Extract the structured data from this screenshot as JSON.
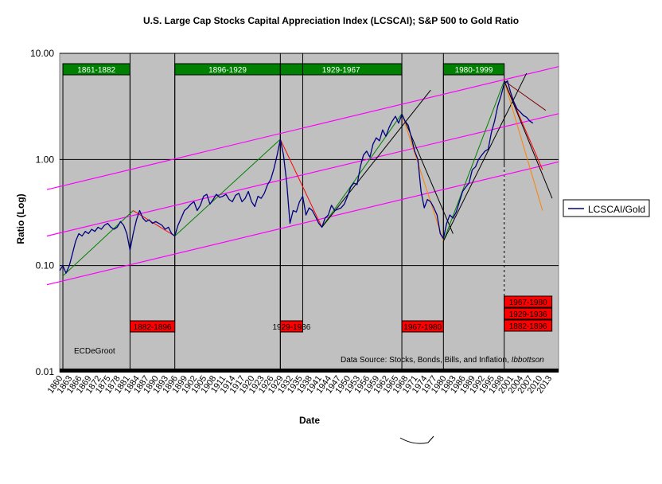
{
  "chart_data": {
    "type": "line",
    "title": "U.S. Large Cap Stocks Capital Appreciation Index (LCSCAI); S&P 500 to Gold Ratio",
    "xlabel": "Date",
    "ylabel": "Ratio (Log)",
    "y_scale": "log",
    "ylim": [
      0.01,
      10
    ],
    "xlim": [
      1860,
      2016
    ],
    "y_ticks": [
      "10.00",
      "1.00",
      "0.10",
      "0.01"
    ],
    "x_ticks": [
      "1860",
      "1863",
      "1866",
      "1869",
      "1872",
      "1875",
      "1878",
      "1881",
      "1884",
      "1887",
      "1890",
      "1893",
      "1896",
      "1899",
      "1902",
      "1905",
      "1908",
      "1911",
      "1914",
      "1917",
      "1920",
      "1923",
      "1926",
      "1929",
      "1932",
      "1935",
      "1938",
      "1941",
      "1944",
      "1947",
      "1950",
      "1953",
      "1956",
      "1959",
      "1962",
      "1965",
      "1968",
      "1971",
      "1974",
      "1977",
      "1980",
      "1983",
      "1986",
      "1989",
      "1992",
      "1995",
      "1998",
      "2001",
      "2004",
      "2007",
      "2010",
      "2013"
    ],
    "plot_background": "#c0c0c0",
    "grid": "horizontal major lines",
    "legend": {
      "position": "right",
      "entries": [
        "LCSCAI/Gold"
      ]
    },
    "series": [
      {
        "name": "LCSCAI/Gold",
        "color": "#000080",
        "points": [
          [
            1860,
            0.09
          ],
          [
            1861,
            0.1
          ],
          [
            1862,
            0.085
          ],
          [
            1863,
            0.1
          ],
          [
            1864,
            0.13
          ],
          [
            1865,
            0.17
          ],
          [
            1866,
            0.2
          ],
          [
            1867,
            0.19
          ],
          [
            1868,
            0.21
          ],
          [
            1869,
            0.2
          ],
          [
            1870,
            0.22
          ],
          [
            1871,
            0.21
          ],
          [
            1872,
            0.23
          ],
          [
            1873,
            0.22
          ],
          [
            1874,
            0.24
          ],
          [
            1875,
            0.25
          ],
          [
            1876,
            0.23
          ],
          [
            1877,
            0.22
          ],
          [
            1878,
            0.23
          ],
          [
            1879,
            0.26
          ],
          [
            1880,
            0.24
          ],
          [
            1881,
            0.2
          ],
          [
            1882,
            0.14
          ],
          [
            1883,
            0.2
          ],
          [
            1884,
            0.27
          ],
          [
            1885,
            0.33
          ],
          [
            1886,
            0.28
          ],
          [
            1887,
            0.26
          ],
          [
            1888,
            0.27
          ],
          [
            1889,
            0.25
          ],
          [
            1890,
            0.26
          ],
          [
            1891,
            0.25
          ],
          [
            1892,
            0.24
          ],
          [
            1893,
            0.22
          ],
          [
            1894,
            0.23
          ],
          [
            1895,
            0.2
          ],
          [
            1896,
            0.19
          ],
          [
            1897,
            0.24
          ],
          [
            1898,
            0.28
          ],
          [
            1899,
            0.33
          ],
          [
            1900,
            0.35
          ],
          [
            1901,
            0.38
          ],
          [
            1902,
            0.4
          ],
          [
            1903,
            0.33
          ],
          [
            1904,
            0.37
          ],
          [
            1905,
            0.45
          ],
          [
            1906,
            0.47
          ],
          [
            1907,
            0.38
          ],
          [
            1908,
            0.42
          ],
          [
            1909,
            0.47
          ],
          [
            1910,
            0.44
          ],
          [
            1911,
            0.45
          ],
          [
            1912,
            0.47
          ],
          [
            1913,
            0.42
          ],
          [
            1914,
            0.4
          ],
          [
            1915,
            0.46
          ],
          [
            1916,
            0.48
          ],
          [
            1917,
            0.4
          ],
          [
            1918,
            0.43
          ],
          [
            1919,
            0.5
          ],
          [
            1920,
            0.4
          ],
          [
            1921,
            0.36
          ],
          [
            1922,
            0.45
          ],
          [
            1923,
            0.43
          ],
          [
            1924,
            0.48
          ],
          [
            1925,
            0.58
          ],
          [
            1926,
            0.65
          ],
          [
            1927,
            0.82
          ],
          [
            1928,
            1.1
          ],
          [
            1929,
            1.55
          ],
          [
            1930,
            1.1
          ],
          [
            1931,
            0.6
          ],
          [
            1932,
            0.25
          ],
          [
            1933,
            0.33
          ],
          [
            1934,
            0.32
          ],
          [
            1935,
            0.4
          ],
          [
            1936,
            0.45
          ],
          [
            1937,
            0.3
          ],
          [
            1938,
            0.35
          ],
          [
            1939,
            0.33
          ],
          [
            1940,
            0.29
          ],
          [
            1941,
            0.25
          ],
          [
            1942,
            0.23
          ],
          [
            1943,
            0.28
          ],
          [
            1944,
            0.3
          ],
          [
            1945,
            0.37
          ],
          [
            1946,
            0.33
          ],
          [
            1947,
            0.34
          ],
          [
            1948,
            0.35
          ],
          [
            1949,
            0.38
          ],
          [
            1950,
            0.45
          ],
          [
            1951,
            0.55
          ],
          [
            1952,
            0.6
          ],
          [
            1953,
            0.58
          ],
          [
            1954,
            0.85
          ],
          [
            1955,
            1.1
          ],
          [
            1956,
            1.2
          ],
          [
            1957,
            1.05
          ],
          [
            1958,
            1.4
          ],
          [
            1959,
            1.6
          ],
          [
            1960,
            1.5
          ],
          [
            1961,
            1.9
          ],
          [
            1962,
            1.65
          ],
          [
            1963,
            2.0
          ],
          [
            1964,
            2.3
          ],
          [
            1965,
            2.55
          ],
          [
            1966,
            2.2
          ],
          [
            1967,
            2.65
          ],
          [
            1968,
            2.3
          ],
          [
            1969,
            2.1
          ],
          [
            1970,
            1.6
          ],
          [
            1971,
            1.2
          ],
          [
            1972,
            1.0
          ],
          [
            1973,
            0.5
          ],
          [
            1974,
            0.35
          ],
          [
            1975,
            0.42
          ],
          [
            1976,
            0.4
          ],
          [
            1977,
            0.35
          ],
          [
            1978,
            0.3
          ],
          [
            1979,
            0.2
          ],
          [
            1980,
            0.18
          ],
          [
            1981,
            0.25
          ],
          [
            1982,
            0.3
          ],
          [
            1983,
            0.28
          ],
          [
            1984,
            0.32
          ],
          [
            1985,
            0.4
          ],
          [
            1986,
            0.5
          ],
          [
            1987,
            0.55
          ],
          [
            1988,
            0.6
          ],
          [
            1989,
            0.8
          ],
          [
            1990,
            0.85
          ],
          [
            1991,
            1.0
          ],
          [
            1992,
            1.1
          ],
          [
            1993,
            1.2
          ],
          [
            1994,
            1.25
          ],
          [
            1995,
            1.8
          ],
          [
            1996,
            2.3
          ],
          [
            1997,
            3.2
          ],
          [
            1998,
            4.0
          ],
          [
            1999,
            5.2
          ],
          [
            2000,
            5.5
          ],
          [
            2001,
            4.3
          ],
          [
            2002,
            3.5
          ],
          [
            2003,
            3.0
          ],
          [
            2004,
            2.8
          ],
          [
            2005,
            2.6
          ],
          [
            2006,
            2.5
          ],
          [
            2007,
            2.3
          ],
          [
            2008,
            2.2
          ]
        ]
      }
    ],
    "periods": [
      {
        "label": "1861-1882",
        "start": 1861,
        "end": 1882,
        "color": "#008000"
      },
      {
        "label": "1896-1929",
        "start": 1896,
        "end": 1929,
        "color": "#008000"
      },
      {
        "label": "1929-1967",
        "start": 1929,
        "end": 1967,
        "color": "#008000"
      },
      {
        "label": "1980-1999",
        "start": 1980,
        "end": 1999,
        "color": "#008000"
      },
      {
        "label": "1882-1896",
        "start": 1882,
        "end": 1896,
        "color": "#ff0000"
      },
      {
        "label": "1929-1936",
        "start": 1929,
        "end": 1936,
        "color": "#ff0000"
      },
      {
        "label": "1967-1980",
        "start": 1967,
        "end": 1980,
        "color": "#ff0000"
      }
    ],
    "bottom_right_boxes": [
      "1967-1980",
      "1929-1936",
      "1882-1896"
    ],
    "channel_lines": [
      {
        "color": "#ff00ff",
        "points": [
          [
            1856,
            0.066
          ],
          [
            2016,
            0.95
          ]
        ]
      },
      {
        "color": "#ff00ff",
        "points": [
          [
            1856,
            0.19
          ],
          [
            2016,
            2.7
          ]
        ]
      },
      {
        "color": "#ff00ff",
        "points": [
          [
            1856,
            0.52
          ],
          [
            2016,
            7.5
          ]
        ]
      }
    ],
    "trend_lines": [
      {
        "color": "#008000",
        "points": [
          [
            1861,
            0.08
          ],
          [
            1883,
            0.33
          ]
        ]
      },
      {
        "color": "#ff0000",
        "points": [
          [
            1883,
            0.33
          ],
          [
            1896,
            0.19
          ]
        ]
      },
      {
        "color": "#008000",
        "points": [
          [
            1896,
            0.19
          ],
          [
            1929,
            1.55
          ]
        ]
      },
      {
        "color": "#ff0000",
        "points": [
          [
            1929,
            1.55
          ],
          [
            1942,
            0.23
          ]
        ]
      },
      {
        "color": "#008000",
        "points": [
          [
            1942,
            0.23
          ],
          [
            1967,
            2.7
          ]
        ]
      },
      {
        "color": "#ff8000",
        "points": [
          [
            1967,
            2.7
          ],
          [
            1980,
            0.17
          ]
        ]
      },
      {
        "color": "#000000",
        "points": [
          [
            1967,
            2.7
          ],
          [
            1983,
            0.2
          ]
        ]
      },
      {
        "color": "#000000",
        "points": [
          [
            1942,
            0.23
          ],
          [
            1976,
            4.5
          ]
        ]
      },
      {
        "color": "#008000",
        "points": [
          [
            1980,
            0.17
          ],
          [
            1999,
            5.5
          ]
        ]
      },
      {
        "color": "#000000",
        "points": [
          [
            1980,
            0.17
          ],
          [
            2006,
            6.5
          ]
        ]
      },
      {
        "color": "#ff8000",
        "points": [
          [
            1999,
            5.5
          ],
          [
            2011,
            0.33
          ]
        ]
      },
      {
        "color": "#ff0000",
        "points": [
          [
            1999,
            5.5
          ],
          [
            2011,
            0.8
          ]
        ]
      },
      {
        "color": "#800000",
        "points": [
          [
            1999,
            5.5
          ],
          [
            2012,
            2.9
          ]
        ]
      },
      {
        "color": "#000000",
        "points": [
          [
            1999,
            5.5
          ],
          [
            2014,
            0.43
          ]
        ]
      }
    ],
    "annotations": [
      "ECDeGroot",
      "Data Source:  Stocks, Bonds, Bills, and Inflation, Ibbottson"
    ]
  },
  "author_note": "ECDeGroot",
  "source_prefix": "Data Source:  Stocks, Bonds, Bills, and Inflation, ",
  "source_italic": "Ibbottson"
}
